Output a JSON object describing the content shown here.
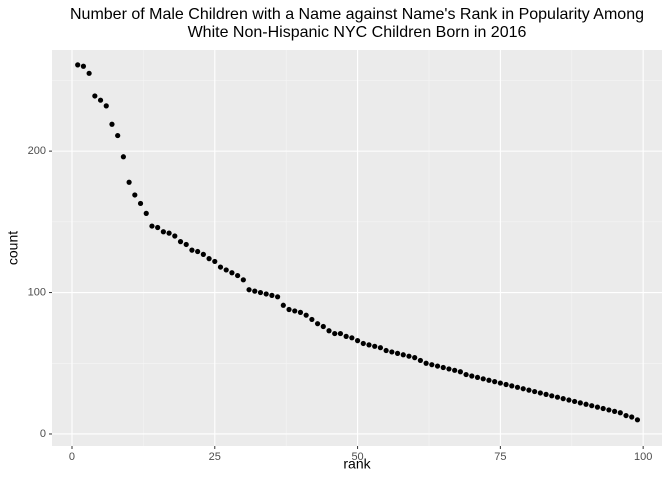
{
  "chart_data": {
    "type": "scatter",
    "title": [
      "Number of Male Children with a Name against Name's Rank in Popularity Among",
      "White Non-Hispanic NYC Children Born in 2016"
    ],
    "x_label": "rank",
    "y_label": "count",
    "x": [
      1,
      2,
      3,
      4,
      5,
      6,
      7,
      8,
      9,
      10,
      11,
      12,
      13,
      14,
      15,
      16,
      17,
      18,
      19,
      20,
      21,
      22,
      23,
      24,
      25,
      26,
      27,
      28,
      29,
      30,
      31,
      32,
      33,
      34,
      35,
      36,
      37,
      38,
      39,
      40,
      41,
      42,
      43,
      44,
      45,
      46,
      47,
      48,
      49,
      50,
      51,
      52,
      53,
      54,
      55,
      56,
      57,
      58,
      59,
      60,
      61,
      62,
      63,
      64,
      65,
      66,
      67,
      68,
      69,
      70,
      71,
      72,
      73,
      74,
      75,
      76,
      77,
      78,
      79,
      80,
      81,
      82,
      83,
      84,
      85,
      86,
      87,
      88,
      89,
      90,
      91,
      92,
      93,
      94,
      95,
      96,
      97,
      98,
      99
    ],
    "values": [
      261,
      260,
      255,
      239,
      236,
      232,
      219,
      211,
      196,
      178,
      169,
      163,
      156,
      147,
      146,
      143,
      142,
      140,
      136,
      134,
      130,
      129,
      127,
      124,
      122,
      118,
      116,
      114,
      112,
      109,
      102,
      101,
      100,
      99,
      98,
      97,
      91,
      88,
      87,
      86,
      84,
      81,
      78,
      76,
      73,
      71,
      71,
      69,
      68,
      66,
      64,
      63,
      62,
      61,
      59,
      58,
      57,
      56,
      55,
      54,
      52,
      50,
      49,
      48,
      47,
      46,
      45,
      44,
      42,
      41,
      40,
      39,
      38,
      37,
      36,
      35,
      34,
      33,
      32,
      31,
      30,
      29,
      28,
      27,
      26,
      25,
      24,
      23,
      22,
      21,
      20,
      19,
      18,
      17,
      16,
      15,
      13,
      12,
      10
    ],
    "color": "#000000",
    "xlim": [
      -3.5,
      103.3
    ],
    "ylim": [
      -8.5,
      271.5
    ],
    "xticks": [
      0,
      25,
      50,
      75,
      100
    ],
    "yticks": [
      0,
      100,
      200
    ],
    "grid": true
  }
}
